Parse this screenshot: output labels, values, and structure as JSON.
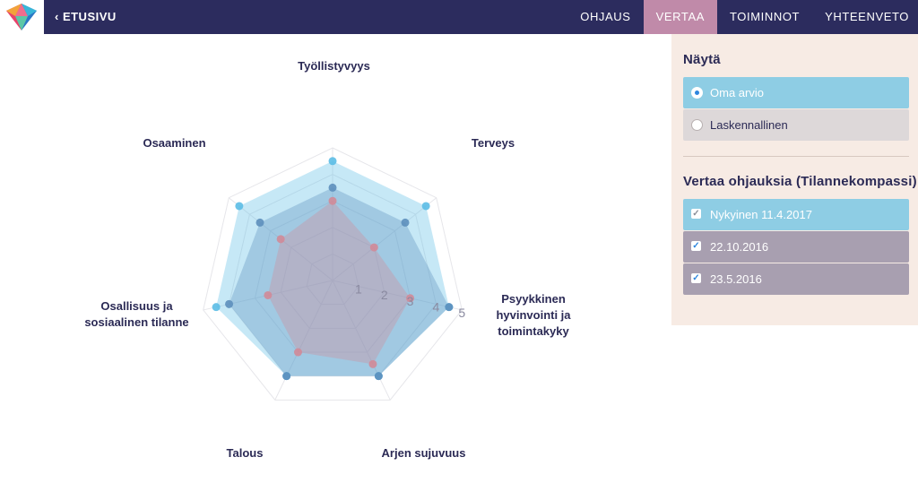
{
  "header": {
    "back_label": "‹ ETUSIVU",
    "nav": [
      "OHJAUS",
      "VERTAA",
      "TOIMINNOT",
      "YHTEENVETO"
    ],
    "active_nav": "VERTAA"
  },
  "panel": {
    "show_title": "Näytä",
    "show_options": [
      {
        "label": "Oma arvio",
        "selected": true
      },
      {
        "label": "Laskennallinen",
        "selected": false
      }
    ],
    "compare_title": "Vertaa ohjauksia (Tilannekompassi)",
    "compare_items": [
      {
        "label": "Nykyinen 11.4.2017",
        "checked": true
      },
      {
        "label": "22.10.2016",
        "checked": true
      },
      {
        "label": "23.5.2016",
        "checked": true
      }
    ]
  },
  "colors": {
    "navbar": "#2c2c5e",
    "active_tab": "#c08aa9",
    "panel_bg": "#f7ebe4",
    "option_selected": "#8ecde4",
    "option_unselected": "#ddd8d9",
    "compare_first": "#8ecde4",
    "compare_other": "#a89fb0"
  },
  "chart_data": {
    "type": "radar",
    "axes": [
      "Työllistyvyys",
      "Terveys",
      "Psyykkinen hyvinvointi ja toimintakyky",
      "Arjen sujuvuus",
      "Talous",
      "Osallisuus ja sosiaalinen tilanne",
      "Osaaminen"
    ],
    "ticks": [
      "1",
      "2",
      "3",
      "4",
      "5"
    ],
    "max": 5,
    "series": [
      {
        "label": "Nykyinen 11.4.2017",
        "values": [
          4.5,
          4.5,
          4.5,
          4.0,
          4.0,
          4.5,
          4.5
        ],
        "color": "#5bbde6"
      },
      {
        "label": "22.10.2016",
        "values": [
          3.5,
          3.5,
          4.5,
          4.0,
          4.0,
          4.0,
          3.5
        ],
        "color": "#5d8fbd"
      },
      {
        "label": "23.5.2016",
        "values": [
          3.0,
          2.0,
          3.0,
          3.5,
          3.0,
          2.5,
          2.5
        ],
        "color": "#d08a98"
      }
    ]
  }
}
